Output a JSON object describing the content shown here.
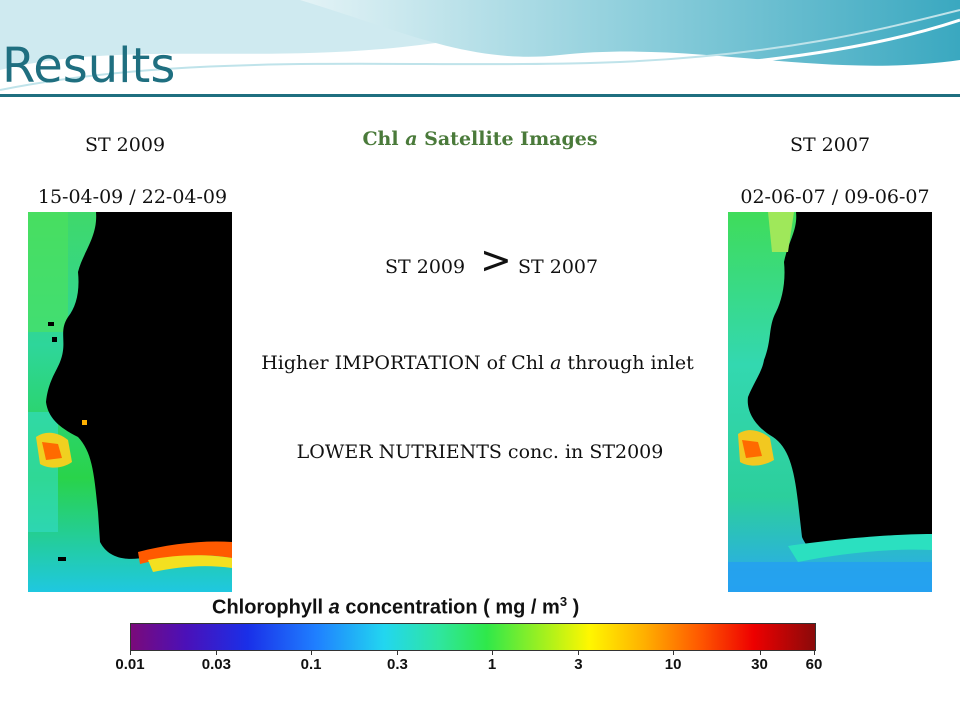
{
  "slide": {
    "title": "Results",
    "subtitle": "Chl a Satellite Images",
    "subtitle_parts": {
      "pre": "Chl ",
      "italic": "a",
      "post": " Satellite Images"
    },
    "accent_color": "#1f6f80"
  },
  "left_panel": {
    "label": "ST 2009",
    "date_range": "15-04-09 / 22-04-09"
  },
  "right_panel": {
    "label": "ST 2007",
    "date_range": "02-06-07 / 09-06-07"
  },
  "findings": {
    "comparison_left": "ST 2009",
    "comparison_symbol": ">",
    "comparison_right": "ST 2007",
    "importation": {
      "pre": "Higher IMPORTATION of Chl ",
      "italic": "a",
      "post": " through inlet"
    },
    "nutrients": "LOWER NUTRIENTS conc. in ST2009"
  },
  "colorbar": {
    "title_pre": "Chlorophyll ",
    "title_italic": "a",
    "title_post": " concentration    ( mg / m",
    "title_sup": "3",
    "title_end": " )",
    "ticks": [
      "0.01",
      "0.03",
      "0.1",
      "0.3",
      "1",
      "3",
      "10",
      "30",
      "60"
    ],
    "tick_values": [
      0.01,
      0.03,
      0.1,
      0.3,
      1,
      3,
      10,
      30,
      60
    ],
    "min": 0.01,
    "max": 60,
    "scale": "log"
  }
}
